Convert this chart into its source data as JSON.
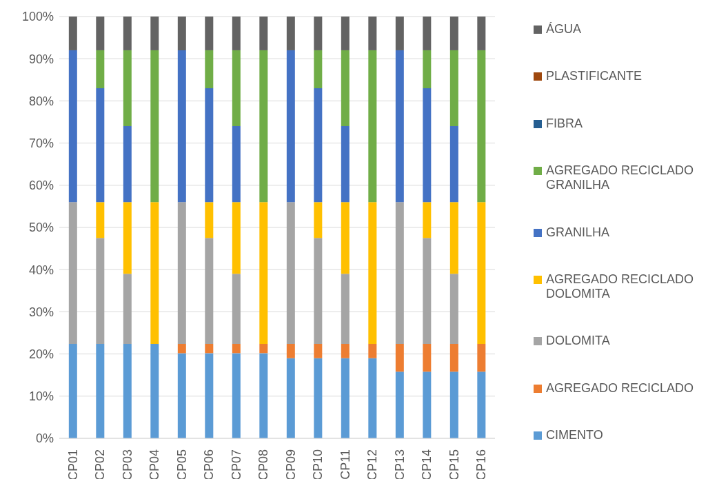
{
  "chart_data": {
    "type": "bar",
    "stacked": true,
    "categories": [
      "CP01",
      "CP02",
      "CP03",
      "CP04",
      "CP05",
      "CP06",
      "CP07",
      "CP08",
      "CP09",
      "CP10",
      "CP11",
      "CP12",
      "CP13",
      "CP14",
      "CP15",
      "CP16"
    ],
    "series": [
      {
        "name": "CIMENTO",
        "color": "#5b9bd5",
        "values": [
          22.4,
          22.4,
          22.4,
          22.4,
          20.2,
          20.2,
          20.2,
          20.2,
          19,
          19,
          19,
          19,
          15.8,
          15.8,
          15.8,
          15.8
        ]
      },
      {
        "name": "AGREGADO RECICLADO",
        "color": "#ed7d31",
        "values": [
          0,
          0,
          0,
          0,
          2.2,
          2.2,
          2.2,
          2.2,
          3.4,
          3.4,
          3.4,
          3.4,
          6.6,
          6.6,
          6.6,
          6.6
        ]
      },
      {
        "name": "DOLOMITA",
        "color": "#a5a5a5",
        "values": [
          33.6,
          25.1,
          16.6,
          0,
          33.6,
          25.1,
          16.6,
          0,
          33.6,
          25.1,
          16.6,
          0,
          33.6,
          25.1,
          16.6,
          0
        ]
      },
      {
        "name": "AGREGADO RECICLADO DOLOMITA",
        "color": "#ffc000",
        "values": [
          0,
          8.5,
          17,
          33.6,
          0,
          8.5,
          17,
          33.6,
          0,
          8.5,
          17,
          33.6,
          0,
          8.5,
          17,
          33.6
        ]
      },
      {
        "name": "GRANILHA",
        "color": "#4472c4",
        "values": [
          36,
          27,
          18,
          0,
          36,
          27,
          18,
          0,
          36,
          27,
          18,
          0,
          36,
          27,
          18,
          0
        ]
      },
      {
        "name": "AGREGADO RECICLADO GRANILHA",
        "color": "#70ad47",
        "values": [
          0,
          9,
          18,
          36,
          0,
          9,
          18,
          36,
          0,
          9,
          18,
          36,
          0,
          9,
          18,
          36
        ]
      },
      {
        "name": "FIBRA",
        "color": "#255e91",
        "values": [
          0,
          0,
          0,
          0,
          0,
          0,
          0,
          0,
          0,
          0,
          0,
          0,
          0,
          0,
          0,
          0
        ]
      },
      {
        "name": "PLASTIFICANTE",
        "color": "#9e480e",
        "values": [
          0,
          0,
          0,
          0,
          0,
          0,
          0,
          0,
          0,
          0,
          0,
          0,
          0,
          0,
          0,
          0
        ]
      },
      {
        "name": "ÁGUA",
        "color": "#636363",
        "values": [
          8,
          8,
          8,
          8,
          8,
          8,
          8,
          8,
          8,
          8,
          8,
          8,
          8,
          8,
          8,
          8
        ]
      }
    ],
    "ylim": [
      0,
      100
    ],
    "yticks": [
      {
        "value": 0,
        "label": "0%"
      },
      {
        "value": 10,
        "label": "10%"
      },
      {
        "value": 20,
        "label": "20%"
      },
      {
        "value": 30,
        "label": "30%"
      },
      {
        "value": 40,
        "label": "40%"
      },
      {
        "value": 50,
        "label": "50%"
      },
      {
        "value": 60,
        "label": "60%"
      },
      {
        "value": 70,
        "label": "70%"
      },
      {
        "value": 80,
        "label": "80%"
      },
      {
        "value": 90,
        "label": "90%"
      },
      {
        "value": 100,
        "label": "100%"
      }
    ],
    "grid": "y",
    "legend": "right"
  }
}
